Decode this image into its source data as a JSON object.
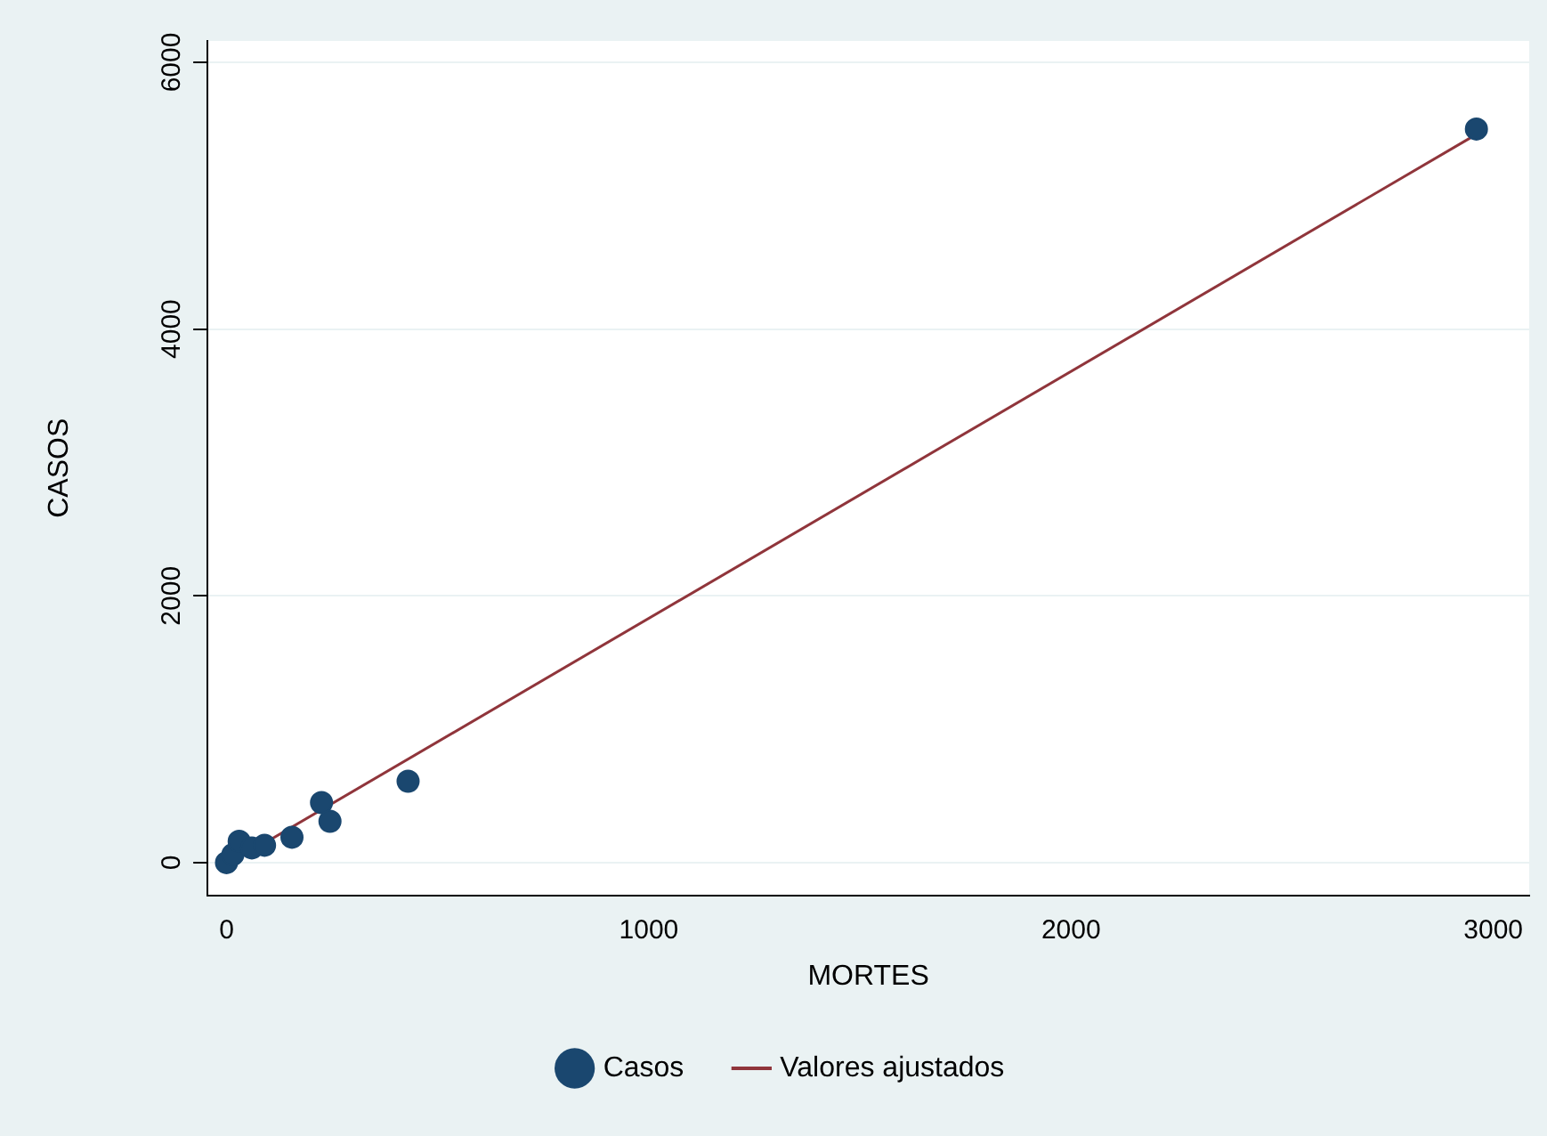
{
  "chart_data": {
    "type": "scatter",
    "xlabel": "MORTES",
    "ylabel": "CASOS",
    "xlim": [
      -45,
      3085
    ],
    "xticks": [
      0,
      1000,
      2000,
      3000
    ],
    "ylim": [
      -245,
      6160
    ],
    "yticks": [
      0,
      2000,
      4000,
      6000
    ],
    "grid": "y",
    "legend": "bottom",
    "marker": "circle",
    "series": [
      {
        "name": "Casos",
        "color": "#1a476f",
        "x": [
          0,
          15,
          30,
          60,
          90,
          155,
          225,
          245,
          430,
          2960
        ],
        "values": [
          0,
          60,
          160,
          110,
          130,
          190,
          450,
          310,
          610,
          5500
        ]
      },
      {
        "name": "Valores ajustados",
        "type": "line",
        "color": "#90353b",
        "marker": "none",
        "x": [
          0,
          2960
        ],
        "values": [
          -20,
          5460
        ]
      }
    ]
  }
}
